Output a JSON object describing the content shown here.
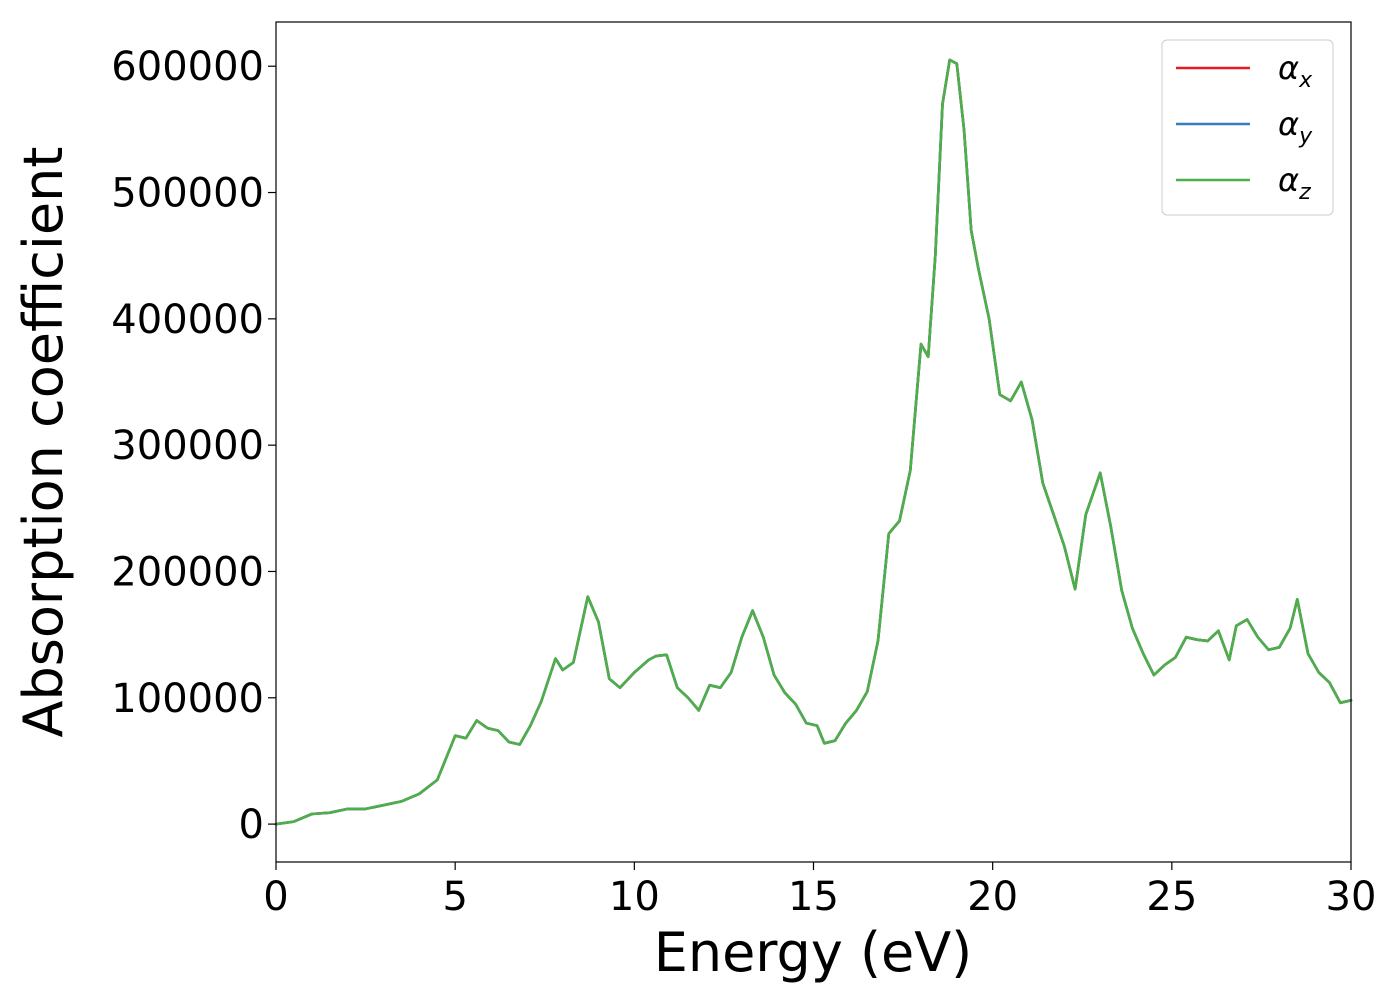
{
  "chart_data": {
    "type": "line",
    "title": "",
    "xlabel": "Energy (eV)",
    "ylabel": "Absorption coefficient",
    "xlim": [
      0,
      30
    ],
    "ylim": [
      -30000,
      635000
    ],
    "grid": false,
    "legend_position": "top-right",
    "x_ticks": [
      "0",
      "5",
      "10",
      "15",
      "20",
      "25",
      "30"
    ],
    "y_ticks": [
      "0",
      "100000",
      "200000",
      "300000",
      "400000",
      "500000",
      "600000"
    ],
    "x": [
      0.0,
      0.5,
      1.0,
      1.5,
      2.0,
      2.5,
      3.0,
      3.5,
      4.0,
      4.5,
      5.0,
      5.3,
      5.6,
      5.9,
      6.2,
      6.5,
      6.8,
      7.1,
      7.4,
      7.8,
      8.0,
      8.3,
      8.7,
      9.0,
      9.3,
      9.6,
      10.0,
      10.4,
      10.6,
      10.9,
      11.2,
      11.5,
      11.8,
      12.1,
      12.4,
      12.7,
      13.0,
      13.3,
      13.6,
      13.9,
      14.2,
      14.5,
      14.8,
      15.1,
      15.3,
      15.6,
      15.9,
      16.2,
      16.5,
      16.8,
      17.1,
      17.4,
      17.7,
      18.0,
      18.2,
      18.4,
      18.6,
      18.8,
      19.0,
      19.2,
      19.4,
      19.6,
      19.9,
      20.2,
      20.5,
      20.8,
      21.1,
      21.4,
      21.7,
      22.0,
      22.3,
      22.6,
      23.0,
      23.3,
      23.6,
      23.9,
      24.2,
      24.5,
      24.8,
      25.1,
      25.4,
      25.7,
      26.0,
      26.3,
      26.6,
      26.8,
      27.1,
      27.4,
      27.7,
      28.0,
      28.3,
      28.5,
      28.8,
      29.1,
      29.4,
      29.7,
      30.0
    ],
    "series": [
      {
        "name": "α_x",
        "label_base": "α",
        "label_sub": "x",
        "color": "#e41a1c",
        "values": [
          0,
          2000,
          8000,
          9000,
          12000,
          12000,
          15000,
          18000,
          24000,
          35000,
          70000,
          68000,
          82000,
          76000,
          74000,
          65000,
          63000,
          78000,
          97000,
          131000,
          122000,
          128000,
          180000,
          160000,
          115000,
          108000,
          120000,
          130000,
          133000,
          134000,
          108000,
          100000,
          90000,
          110000,
          108000,
          120000,
          148000,
          169000,
          148000,
          118000,
          104000,
          95000,
          80000,
          78000,
          64000,
          66000,
          80000,
          90000,
          105000,
          145000,
          230000,
          240000,
          280000,
          380000,
          370000,
          450000,
          570000,
          605000,
          602000,
          550000,
          470000,
          440000,
          400000,
          340000,
          335000,
          350000,
          320000,
          270000,
          245000,
          220000,
          186000,
          245000,
          278000,
          235000,
          185000,
          155000,
          135000,
          118000,
          126000,
          132000,
          148000,
          146000,
          145000,
          153000,
          130000,
          157000,
          162000,
          148000,
          138000,
          140000,
          155000,
          178000,
          135000,
          120000,
          112000,
          96000,
          98000
        ]
      },
      {
        "name": "α_y",
        "label_base": "α",
        "label_sub": "y",
        "color": "#377eb8",
        "values": [
          0,
          2000,
          8000,
          9000,
          12000,
          12000,
          15000,
          18000,
          24000,
          35000,
          70000,
          68000,
          82000,
          76000,
          74000,
          65000,
          63000,
          78000,
          97000,
          131000,
          122000,
          128000,
          180000,
          160000,
          115000,
          108000,
          120000,
          130000,
          133000,
          134000,
          108000,
          100000,
          90000,
          110000,
          108000,
          120000,
          148000,
          169000,
          148000,
          118000,
          104000,
          95000,
          80000,
          78000,
          64000,
          66000,
          80000,
          90000,
          105000,
          145000,
          230000,
          240000,
          280000,
          380000,
          370000,
          450000,
          570000,
          605000,
          602000,
          550000,
          470000,
          440000,
          400000,
          340000,
          335000,
          350000,
          320000,
          270000,
          245000,
          220000,
          186000,
          245000,
          278000,
          235000,
          185000,
          155000,
          135000,
          118000,
          126000,
          132000,
          148000,
          146000,
          145000,
          153000,
          130000,
          157000,
          162000,
          148000,
          138000,
          140000,
          155000,
          178000,
          135000,
          120000,
          112000,
          96000,
          98000
        ]
      },
      {
        "name": "α_z",
        "label_base": "α",
        "label_sub": "z",
        "color": "#4daf4a",
        "values": [
          0,
          2000,
          8000,
          9000,
          12000,
          12000,
          15000,
          18000,
          24000,
          35000,
          70000,
          68000,
          82000,
          76000,
          74000,
          65000,
          63000,
          78000,
          97000,
          131000,
          122000,
          128000,
          180000,
          160000,
          115000,
          108000,
          120000,
          130000,
          133000,
          134000,
          108000,
          100000,
          90000,
          110000,
          108000,
          120000,
          148000,
          169000,
          148000,
          118000,
          104000,
          95000,
          80000,
          78000,
          64000,
          66000,
          80000,
          90000,
          105000,
          145000,
          230000,
          240000,
          280000,
          380000,
          370000,
          450000,
          570000,
          605000,
          602000,
          550000,
          470000,
          440000,
          400000,
          340000,
          335000,
          350000,
          320000,
          270000,
          245000,
          220000,
          186000,
          245000,
          278000,
          235000,
          185000,
          155000,
          135000,
          118000,
          126000,
          132000,
          148000,
          146000,
          145000,
          153000,
          130000,
          157000,
          162000,
          148000,
          138000,
          140000,
          155000,
          178000,
          135000,
          120000,
          112000,
          96000,
          98000
        ]
      }
    ]
  }
}
